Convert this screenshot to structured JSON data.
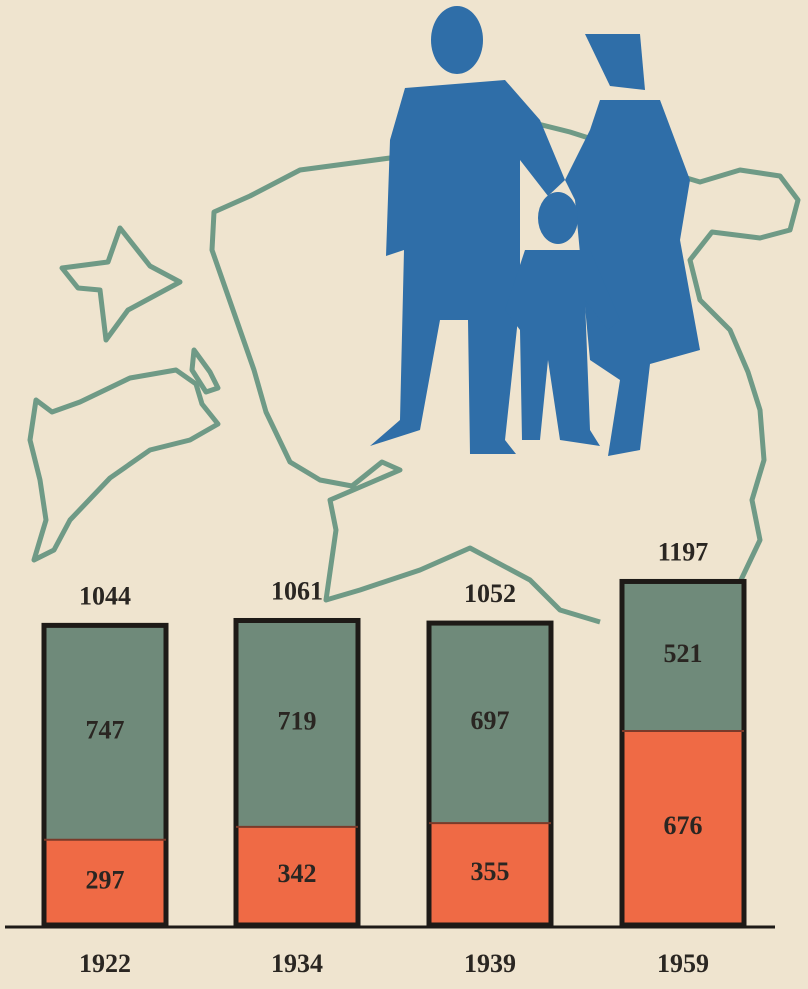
{
  "chart_data": {
    "type": "stacked-bar",
    "categories": [
      "1922",
      "1934",
      "1939",
      "1959"
    ],
    "series": [
      {
        "color": "#ef6a45",
        "values": [
          297,
          342,
          355,
          676
        ]
      },
      {
        "color": "#6f8a7a",
        "values": [
          747,
          719,
          697,
          521
        ]
      }
    ],
    "totals": [
      1044,
      1061,
      1052,
      1197
    ]
  }
}
